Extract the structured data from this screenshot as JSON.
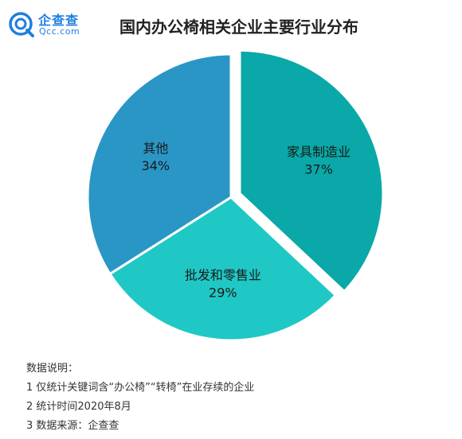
{
  "header": {
    "logo_name": "企查查",
    "logo_domain": "Qcc.com",
    "title": "国内办公椅相关企业主要行业分布"
  },
  "chart_data": {
    "type": "pie",
    "title": "国内办公椅相关企业主要行业分布",
    "slices": [
      {
        "label": "家具制造业",
        "value": 37,
        "value_label": "37%",
        "color": "#0aa8a8",
        "exploded": true
      },
      {
        "label": "批发和零售业",
        "value": 29,
        "value_label": "29%",
        "color": "#1fc8c4",
        "exploded": false
      },
      {
        "label": "其他",
        "value": 34,
        "value_label": "34%",
        "color": "#2a96c6",
        "exploded": false
      }
    ]
  },
  "notes": {
    "heading": "数据说明：",
    "items": [
      "1 仅统计关键词含“办公椅”“转椅”在业存续的企业",
      "2 统计时间2020年8月",
      "3 数据来源：企查查"
    ]
  }
}
